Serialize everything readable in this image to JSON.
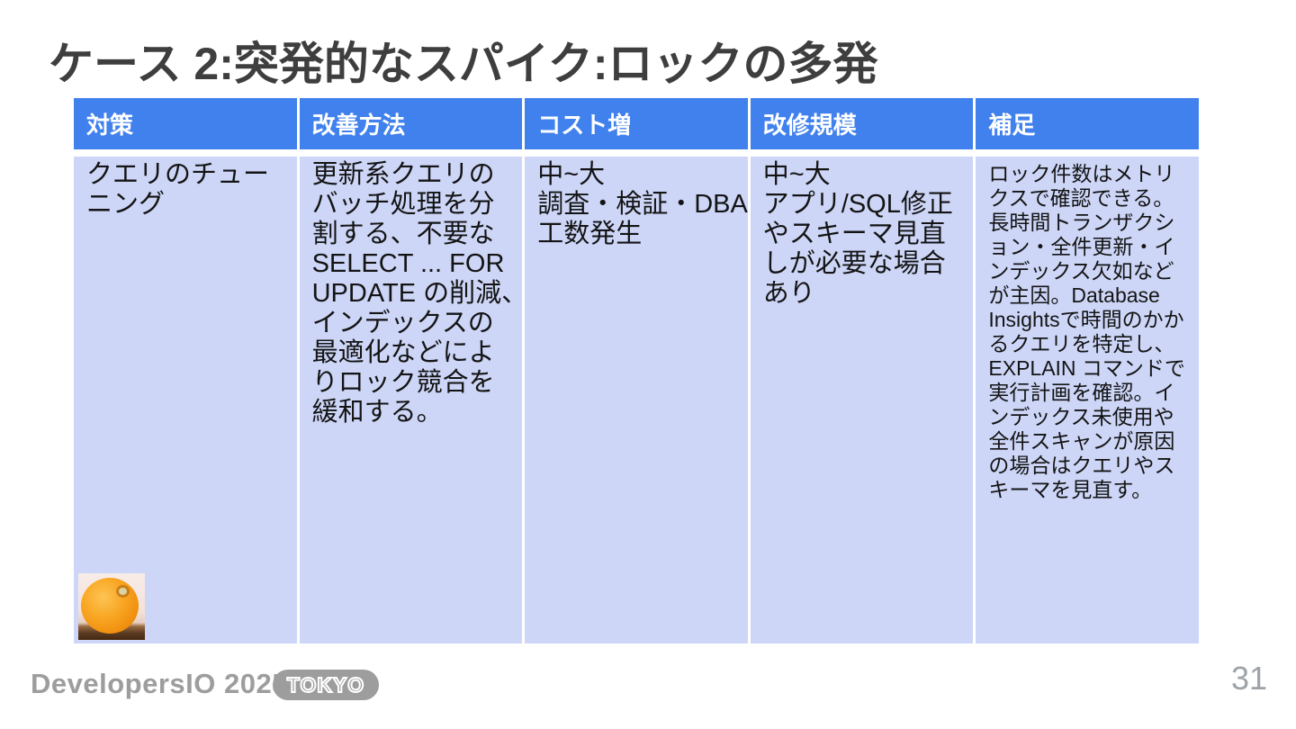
{
  "page": {
    "title": "ケース 2:突発的なスパイク:ロックの多発",
    "page_number": "31"
  },
  "table": {
    "columns": [
      {
        "header": "対策",
        "body": "クエリのチュー\nニング"
      },
      {
        "header": "改善方法",
        "body": "更新系クエリの\nバッチ処理を分\n割する、不要な\nSELECT ... FOR\nUPDATE の削減、\nインデックスの\n最適化などによ\nりロック競合を\n緩和する。"
      },
      {
        "header": "コスト増",
        "body": "中~大\n調査・検証・DBA\n工数発生"
      },
      {
        "header": "改修規模",
        "body": "中~大\nアプリ/SQL修正\nやスキーマ見直\nしが必要な場合\nあり"
      },
      {
        "header": "補足",
        "body": "ロック件数はメトリ\nクスで確認できる。\n長時間トランザクシ\nョン・全件更新・イ\nンデックス欠如など\nが主因。Database\nInsightsで時間のかか\nるクエリを特定し、\nEXPLAIN コマンドで\n実行計画を確認。イ\nンデックス未使用や\n全件スキャンが原因\nの場合はクエリやス\nキーマを見直す。"
      }
    ]
  },
  "footer": {
    "brand": "DevelopersIO 2025",
    "badge": "TOKYO"
  },
  "images": {
    "orange_photo": "orange-fruit-photo"
  },
  "colors": {
    "table_header_bg": "#4181ED",
    "table_header_text": "#FFFFFF",
    "table_body_bg": "#CDD6F7",
    "title_text": "#3E3E3E",
    "footer_gray": "#9D9D9D",
    "orange_fruit": "#F59B17"
  }
}
